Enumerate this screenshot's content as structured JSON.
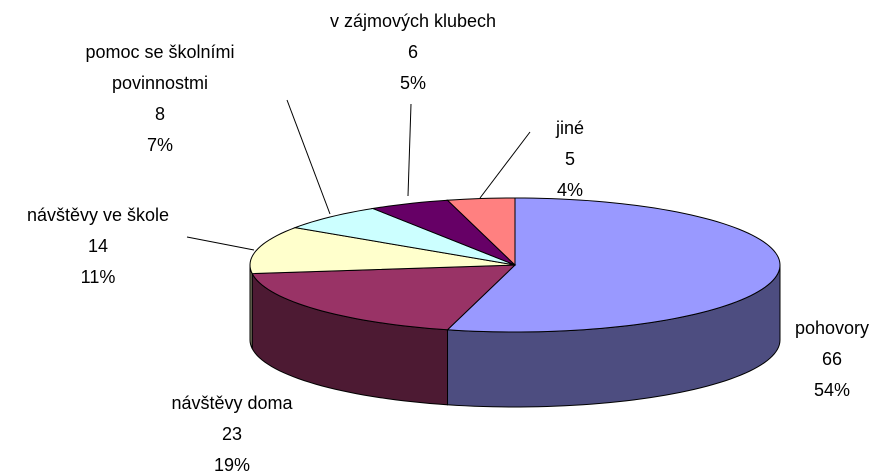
{
  "chart_data": {
    "type": "pie3d",
    "categories": [
      "pohovory",
      "návštěvy doma",
      "návštěvy ve škole",
      "pomoc se školními povinnostmi",
      "v zájmových klubech",
      "jiné"
    ],
    "values": [
      66,
      23,
      14,
      8,
      6,
      5
    ],
    "percent_labels": [
      "54%",
      "19%",
      "11%",
      "7%",
      "5%",
      "4%"
    ],
    "colors": [
      "#9999ff",
      "#993366",
      "#ffffcc",
      "#ccffff",
      "#660066",
      "#ff8080"
    ]
  }
}
